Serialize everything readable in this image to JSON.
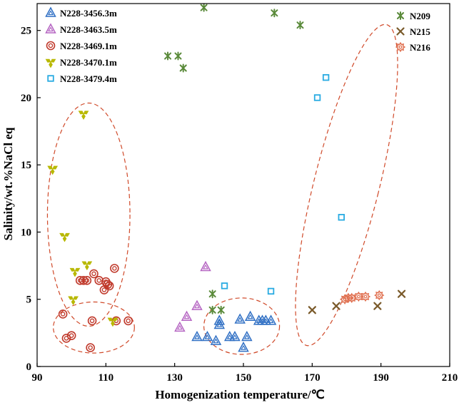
{
  "chart_data": {
    "type": "scatter",
    "xlabel": "Homogenization temperature/℃",
    "ylabel": "Salinity/wt.%NaCl eq",
    "xlim": [
      90,
      210
    ],
    "ylim": [
      0,
      27
    ],
    "xticks": [
      90,
      110,
      130,
      150,
      170,
      190,
      210
    ],
    "yticks": [
      0,
      5,
      10,
      15,
      20,
      25
    ],
    "grid": false,
    "legend_left": "top-left",
    "legend_right": "top-right",
    "series": [
      {
        "name": "N228-3456.3m",
        "marker": "double-triangle",
        "color": "#2f6fc4",
        "x": [
          136.5,
          139.5,
          142,
          143,
          143,
          146,
          147.5,
          149,
          150,
          151,
          152,
          154.5,
          155.5,
          156.5,
          158
        ],
        "y": [
          2.2,
          2.2,
          1.9,
          3.4,
          3.1,
          2.2,
          2.2,
          3.5,
          1.4,
          2.2,
          3.7,
          3.4,
          3.4,
          3.4,
          3.4
        ]
      },
      {
        "name": "N228-3463.5m",
        "marker": "double-triangle",
        "color": "#b565c2",
        "x": [
          131.5,
          133.5,
          136.5,
          139
        ],
        "y": [
          2.9,
          3.7,
          4.5,
          7.4
        ]
      },
      {
        "name": "N228-3469.1m",
        "marker": "double-circle",
        "color": "#c0392b",
        "x": [
          97.5,
          98.5,
          100,
          102.5,
          103.5,
          104.5,
          105.5,
          106,
          106.5,
          108,
          109.5,
          110,
          110.5,
          111,
          112.5,
          113,
          116.5
        ],
        "y": [
          3.9,
          2.1,
          2.3,
          6.4,
          6.4,
          6.4,
          1.4,
          3.4,
          6.9,
          6.4,
          5.7,
          6.3,
          6.1,
          6.0,
          7.3,
          3.4,
          3.4
        ]
      },
      {
        "name": "N228-3470.1m",
        "marker": "tri-blade",
        "color": "#b8b800",
        "x": [
          94.5,
          98,
          100.5,
          101,
          103.5,
          104.5,
          112
        ],
        "y": [
          14.7,
          9.7,
          5.0,
          7.1,
          18.8,
          7.6,
          3.4
        ]
      },
      {
        "name": "N228-3479.4m",
        "marker": "square",
        "color": "#29abe2",
        "x": [
          144.5,
          158,
          171.5,
          174,
          178.5
        ],
        "y": [
          6.0,
          5.6,
          20.0,
          21.5,
          11.1
        ]
      },
      {
        "name": "N209",
        "marker": "asterisk",
        "color": "#5a8a3a",
        "x": [
          128,
          131,
          132.5,
          138.5,
          141,
          141,
          143.5,
          159,
          166.5
        ],
        "y": [
          23.1,
          23.1,
          22.2,
          26.7,
          4.2,
          5.4,
          4.2,
          26.3,
          25.4
        ]
      },
      {
        "name": "N215",
        "marker": "x",
        "color": "#7a5a2a",
        "x": [
          170,
          177,
          189,
          196
        ],
        "y": [
          4.2,
          4.5,
          4.5,
          5.4
        ]
      },
      {
        "name": "N216",
        "marker": "gear",
        "color": "#e07050",
        "x": [
          179.5,
          180.5,
          181.5,
          183.5,
          185.5,
          189.5
        ],
        "y": [
          5.0,
          5.1,
          5.1,
          5.2,
          5.2,
          5.3
        ]
      }
    ],
    "annotations": [
      {
        "type": "dashed-ellipse",
        "color": "#d04a2a",
        "cx": 105,
        "cy": 11.3,
        "rx": 12,
        "ry": 8.3,
        "angle_deg": 0
      },
      {
        "type": "dashed-ellipse",
        "color": "#d04a2a",
        "cx": 106.5,
        "cy": 2.9,
        "rx": 11.8,
        "ry": 1.9,
        "angle_deg": 0
      },
      {
        "type": "dashed-ellipse",
        "color": "#d04a2a",
        "cx": 149.5,
        "cy": 3.0,
        "rx": 11,
        "ry": 2.1,
        "angle_deg": 0
      },
      {
        "type": "dashed-ellipse",
        "color": "#d04a2a",
        "cx": 180,
        "cy": 13.5,
        "rx": 9.5,
        "ry": 12.3,
        "angle_deg": 14
      }
    ]
  }
}
